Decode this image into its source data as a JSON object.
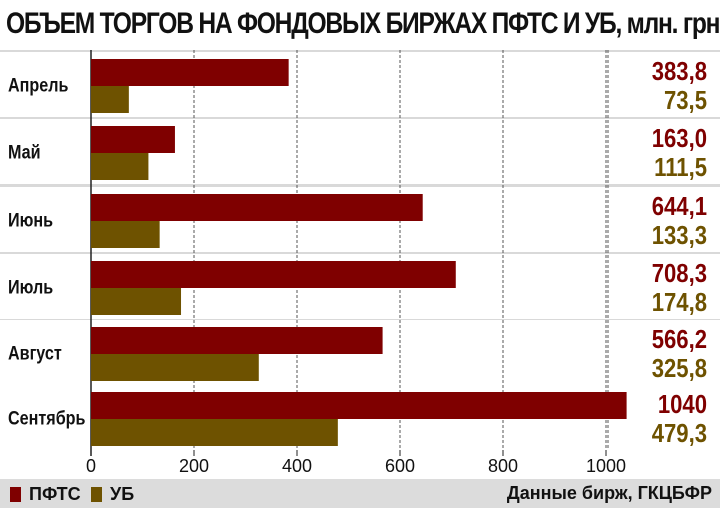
{
  "title": "ОБЪЕМ ТОРГОВ НА ФОНДОВЫХ БИРЖАХ ПФТС И УБ, млн. грн.",
  "source": "Данные бирж, ГКЦБФР",
  "colors": {
    "pfts": "#7f0000",
    "ub": "#6e5200",
    "grid": "#555555",
    "band": "#ffffff",
    "footer": "#dcdcdc"
  },
  "chart_data": {
    "type": "bar",
    "orientation": "horizontal",
    "categories": [
      "Апрель",
      "Май",
      "Июнь",
      "Июль",
      "Август",
      "Сентябрь"
    ],
    "series": [
      {
        "name": "ПФТС",
        "values": [
          383.8,
          163.0,
          644.1,
          708.3,
          566.2,
          1040
        ],
        "labels": [
          "383,8",
          "163,0",
          "644,1",
          "708,3",
          "566,2",
          "1040"
        ]
      },
      {
        "name": "УБ",
        "values": [
          73.5,
          111.5,
          133.3,
          174.8,
          325.8,
          479.3
        ],
        "labels": [
          "73,5",
          "111,5",
          "133,3",
          "174,8",
          "325,8",
          "479,3"
        ]
      }
    ],
    "xticks": [
      "0",
      "200",
      "400",
      "600",
      "800",
      "1000"
    ],
    "xlim": [
      0,
      1040
    ],
    "grid": true,
    "legend": "bottom-left"
  }
}
